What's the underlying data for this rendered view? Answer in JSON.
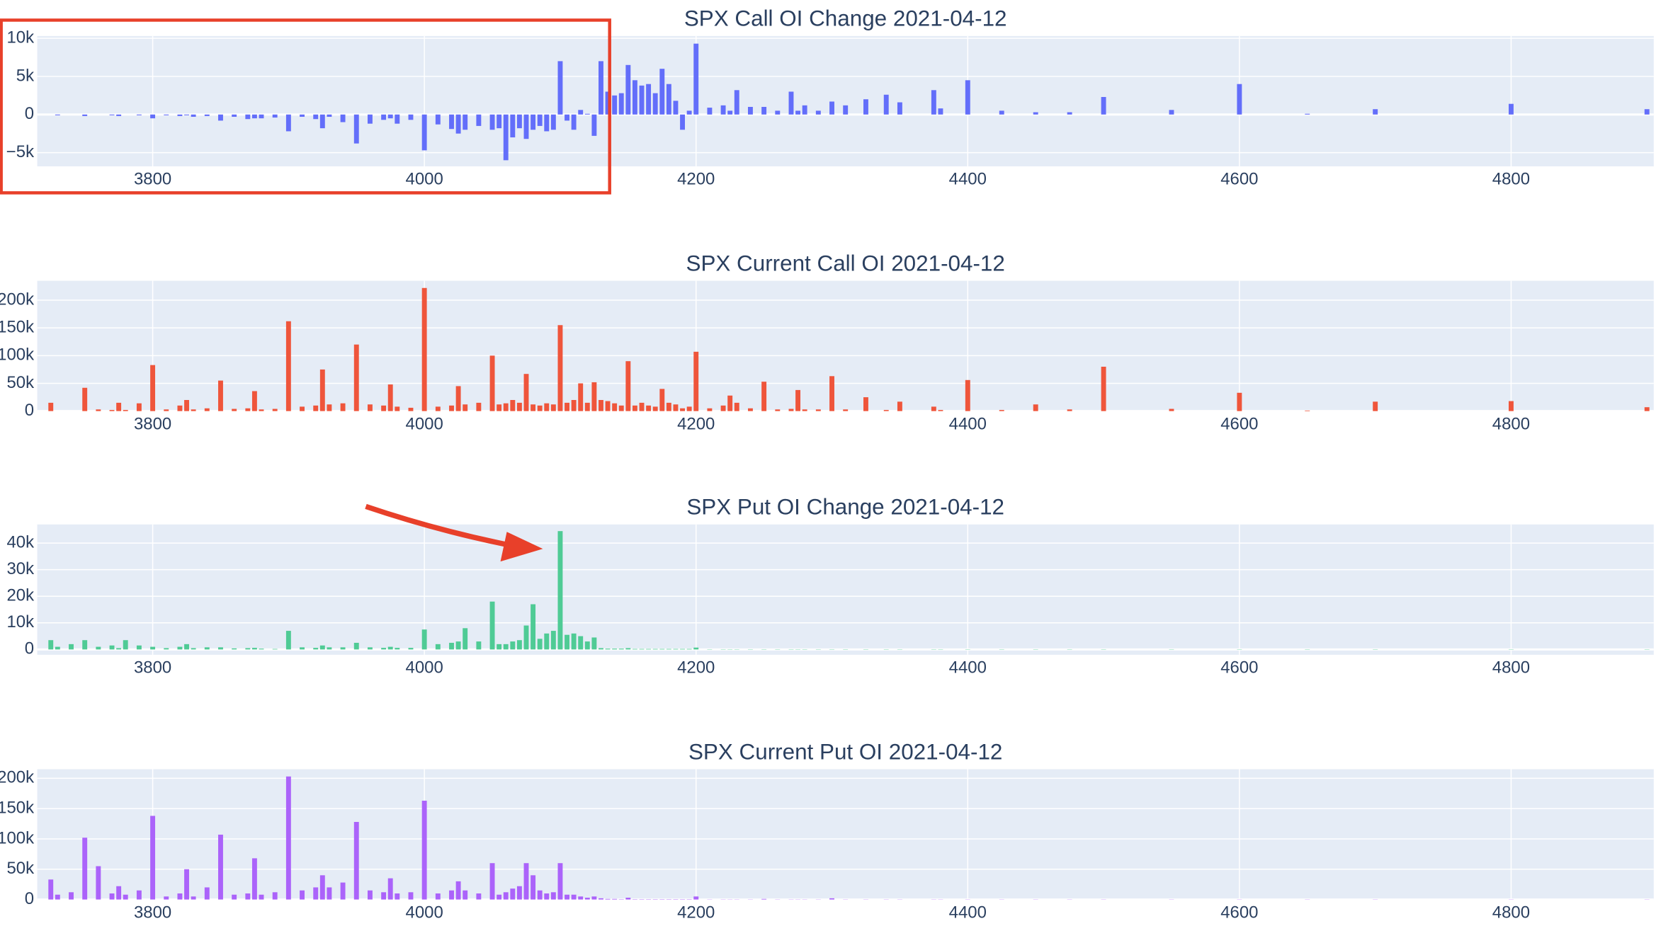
{
  "chart_data": [
    {
      "type": "bar",
      "title": "SPX Call OI Change 2021-04-12",
      "color": "#636efa",
      "x": [
        3725,
        3730,
        3740,
        3750,
        3760,
        3770,
        3775,
        3780,
        3790,
        3800,
        3810,
        3820,
        3825,
        3830,
        3840,
        3850,
        3860,
        3870,
        3875,
        3880,
        3890,
        3900,
        3910,
        3920,
        3925,
        3930,
        3940,
        3950,
        3960,
        3970,
        3975,
        3980,
        3990,
        4000,
        4010,
        4020,
        4025,
        4030,
        4040,
        4050,
        4055,
        4060,
        4065,
        4070,
        4075,
        4080,
        4085,
        4090,
        4095,
        4100,
        4105,
        4110,
        4115,
        4120,
        4125,
        4130,
        4135,
        4140,
        4145,
        4150,
        4155,
        4160,
        4165,
        4170,
        4175,
        4180,
        4185,
        4190,
        4195,
        4200,
        4210,
        4220,
        4225,
        4230,
        4240,
        4250,
        4260,
        4270,
        4275,
        4280,
        4290,
        4300,
        4310,
        4325,
        4340,
        4350,
        4375,
        4380,
        4400,
        4425,
        4450,
        4475,
        4500,
        4550,
        4600,
        4650,
        4700,
        4800,
        4900
      ],
      "values": [
        0,
        -100,
        0,
        -200,
        0,
        -100,
        -200,
        0,
        -100,
        -500,
        -100,
        -200,
        -100,
        -300,
        -200,
        -800,
        -300,
        -600,
        -500,
        -500,
        -400,
        -2200,
        -300,
        -600,
        -1800,
        -300,
        -1000,
        -3800,
        -1200,
        -700,
        -500,
        -1200,
        -700,
        -4700,
        -1300,
        -1900,
        -2500,
        -2000,
        -1500,
        -2000,
        -1800,
        -6000,
        -3000,
        -1800,
        -3200,
        -2000,
        -1500,
        -2200,
        -2000,
        7000,
        -800,
        -2000,
        600,
        100,
        -2800,
        7000,
        3000,
        2500,
        2800,
        6500,
        4500,
        3800,
        4000,
        2800,
        6000,
        4000,
        1800,
        -2000,
        500,
        9300,
        900,
        1200,
        500,
        3200,
        1000,
        1000,
        500,
        3000,
        500,
        1200,
        500,
        1700,
        1200,
        2000,
        2600,
        1600,
        3200,
        800,
        4500,
        500,
        300,
        300,
        2300,
        600,
        4000,
        100,
        700,
        1400,
        700
      ],
      "xlim": [
        3715,
        4905
      ],
      "xticks": [
        3800,
        4000,
        4200,
        4400,
        4600,
        4800
      ],
      "ylim": [
        -6800,
        10300
      ],
      "yticks": [
        {
          "value": -5000,
          "label": "−5k"
        },
        0,
        {
          "value": 5000,
          "label": "5k"
        },
        {
          "value": 10000,
          "label": "10k"
        }
      ],
      "grid": true
    },
    {
      "type": "bar",
      "title": "SPX Current Call OI 2021-04-12",
      "color": "#ef553b",
      "x": [
        3725,
        3730,
        3740,
        3750,
        3760,
        3770,
        3775,
        3780,
        3790,
        3800,
        3810,
        3820,
        3825,
        3830,
        3840,
        3850,
        3860,
        3870,
        3875,
        3880,
        3890,
        3900,
        3910,
        3920,
        3925,
        3930,
        3940,
        3950,
        3960,
        3970,
        3975,
        3980,
        3990,
        4000,
        4010,
        4020,
        4025,
        4030,
        4040,
        4050,
        4055,
        4060,
        4065,
        4070,
        4075,
        4080,
        4085,
        4090,
        4095,
        4100,
        4105,
        4110,
        4115,
        4120,
        4125,
        4130,
        4135,
        4140,
        4145,
        4150,
        4155,
        4160,
        4165,
        4170,
        4175,
        4180,
        4185,
        4190,
        4195,
        4200,
        4210,
        4220,
        4225,
        4230,
        4240,
        4250,
        4260,
        4270,
        4275,
        4280,
        4290,
        4300,
        4310,
        4325,
        4340,
        4350,
        4375,
        4380,
        4400,
        4425,
        4450,
        4475,
        4500,
        4550,
        4600,
        4650,
        4700,
        4800,
        4900
      ],
      "values": [
        15000,
        0,
        0,
        42000,
        3000,
        2000,
        15000,
        2000,
        14000,
        83000,
        3000,
        10000,
        20000,
        3000,
        5000,
        55000,
        4000,
        5000,
        36000,
        3000,
        4000,
        162000,
        8000,
        10000,
        75000,
        12000,
        14000,
        120000,
        12000,
        10000,
        48000,
        8000,
        6000,
        222000,
        8000,
        10000,
        45000,
        12000,
        15000,
        100000,
        12000,
        14000,
        20000,
        15000,
        67000,
        12000,
        10000,
        14000,
        12000,
        155000,
        15000,
        20000,
        50000,
        15000,
        52000,
        20000,
        18000,
        14000,
        10000,
        90000,
        10000,
        15000,
        10000,
        8000,
        40000,
        15000,
        12000,
        5000,
        8000,
        107000,
        5000,
        10000,
        28000,
        15000,
        5000,
        53000,
        3000,
        4000,
        38000,
        3000,
        3000,
        63000,
        3000,
        25000,
        2000,
        17000,
        8000,
        2000,
        56000,
        2000,
        12000,
        3000,
        80000,
        4000,
        33000,
        1000,
        17000,
        18000,
        7000
      ],
      "xlim": [
        3715,
        4905
      ],
      "xticks": [
        3800,
        4000,
        4200,
        4400,
        4600,
        4800
      ],
      "ylim": [
        0,
        235000
      ],
      "yticks": [
        0,
        {
          "value": 50000,
          "label": "50k"
        },
        {
          "value": 100000,
          "label": "100k"
        },
        {
          "value": 150000,
          "label": "150k"
        },
        {
          "value": 200000,
          "label": "200k"
        }
      ],
      "grid": true
    },
    {
      "type": "bar",
      "title": "SPX Put OI Change 2021-04-12",
      "color": "#4fcb95",
      "x": [
        3725,
        3730,
        3740,
        3750,
        3760,
        3770,
        3775,
        3780,
        3790,
        3800,
        3810,
        3820,
        3825,
        3830,
        3840,
        3850,
        3860,
        3870,
        3875,
        3880,
        3890,
        3900,
        3910,
        3920,
        3925,
        3930,
        3940,
        3950,
        3960,
        3970,
        3975,
        3980,
        3990,
        4000,
        4010,
        4020,
        4025,
        4030,
        4040,
        4050,
        4055,
        4060,
        4065,
        4070,
        4075,
        4080,
        4085,
        4090,
        4095,
        4100,
        4105,
        4110,
        4115,
        4120,
        4125,
        4130,
        4135,
        4140,
        4145,
        4150,
        4155,
        4160,
        4165,
        4170,
        4175,
        4180,
        4185,
        4190,
        4195,
        4200,
        4210,
        4220,
        4225,
        4230,
        4240,
        4250,
        4260,
        4270,
        4275,
        4280,
        4290,
        4300,
        4310,
        4325,
        4340,
        4350,
        4375,
        4380,
        4400,
        4425,
        4450,
        4475,
        4500,
        4550,
        4600,
        4650,
        4700,
        4800,
        4900
      ],
      "values": [
        3500,
        1000,
        2000,
        3500,
        1000,
        1500,
        500,
        3500,
        1500,
        1000,
        500,
        1000,
        2000,
        500,
        800,
        800,
        400,
        500,
        600,
        300,
        200,
        7000,
        800,
        600,
        1500,
        800,
        800,
        2500,
        800,
        600,
        1000,
        600,
        600,
        7500,
        2000,
        2500,
        3000,
        8000,
        3000,
        18000,
        2000,
        2000,
        3000,
        3500,
        9000,
        17000,
        4000,
        6000,
        7000,
        44500,
        5500,
        6000,
        5000,
        3000,
        4500,
        500,
        300,
        300,
        300,
        500,
        200,
        200,
        200,
        200,
        200,
        200,
        200,
        200,
        200,
        700,
        100,
        100,
        100,
        100,
        100,
        100,
        100,
        100,
        100,
        100,
        100,
        100,
        100,
        100,
        100,
        100,
        100,
        100,
        100,
        100,
        100,
        100,
        100,
        100,
        100,
        100,
        100,
        100,
        100
      ],
      "xlim": [
        3715,
        4905
      ],
      "xticks": [
        3800,
        4000,
        4200,
        4400,
        4600,
        4800
      ],
      "ylim": [
        -2000,
        47000
      ],
      "yticks": [
        0,
        {
          "value": 10000,
          "label": "10k"
        },
        {
          "value": 20000,
          "label": "20k"
        },
        {
          "value": 30000,
          "label": "30k"
        },
        {
          "value": 40000,
          "label": "40k"
        }
      ],
      "grid": true
    },
    {
      "type": "bar",
      "title": "SPX Current Put OI 2021-04-12",
      "color": "#ab63fa",
      "x": [
        3725,
        3730,
        3740,
        3750,
        3760,
        3770,
        3775,
        3780,
        3790,
        3800,
        3810,
        3820,
        3825,
        3830,
        3840,
        3850,
        3860,
        3870,
        3875,
        3880,
        3890,
        3900,
        3910,
        3920,
        3925,
        3930,
        3940,
        3950,
        3960,
        3970,
        3975,
        3980,
        3990,
        4000,
        4010,
        4020,
        4025,
        4030,
        4040,
        4050,
        4055,
        4060,
        4065,
        4070,
        4075,
        4080,
        4085,
        4090,
        4095,
        4100,
        4105,
        4110,
        4115,
        4120,
        4125,
        4130,
        4135,
        4140,
        4145,
        4150,
        4155,
        4160,
        4165,
        4170,
        4175,
        4180,
        4185,
        4190,
        4195,
        4200,
        4210,
        4220,
        4225,
        4230,
        4240,
        4250,
        4260,
        4270,
        4275,
        4280,
        4290,
        4300,
        4310,
        4325,
        4340,
        4350,
        4375,
        4380,
        4400,
        4425,
        4450,
        4475,
        4500,
        4550,
        4600,
        4650,
        4700,
        4800,
        4900
      ],
      "values": [
        33000,
        8000,
        12000,
        102000,
        55000,
        10000,
        22000,
        8000,
        15000,
        138000,
        5000,
        10000,
        50000,
        5000,
        20000,
        107000,
        8000,
        10000,
        68000,
        8000,
        12000,
        203000,
        15000,
        20000,
        40000,
        20000,
        28000,
        128000,
        15000,
        12000,
        35000,
        10000,
        12000,
        163000,
        10000,
        15000,
        30000,
        15000,
        10000,
        60000,
        8000,
        12000,
        18000,
        22000,
        60000,
        40000,
        15000,
        10000,
        12000,
        60000,
        8000,
        8000,
        5000,
        3000,
        5000,
        2000,
        1000,
        1000,
        500,
        3000,
        500,
        500,
        500,
        500,
        500,
        500,
        500,
        500,
        500,
        5000,
        300,
        300,
        300,
        300,
        300,
        1000,
        300,
        300,
        300,
        300,
        300,
        2000,
        300,
        300,
        300,
        300,
        300,
        300,
        300,
        300,
        300,
        300,
        300,
        300,
        300,
        300,
        300,
        300,
        300
      ],
      "xlim": [
        3715,
        4905
      ],
      "xticks": [
        3800,
        4000,
        4200,
        4400,
        4600,
        4800
      ],
      "ylim": [
        0,
        215000
      ],
      "yticks": [
        0,
        {
          "value": 50000,
          "label": "50k"
        },
        {
          "value": 100000,
          "label": "100k"
        },
        {
          "value": 150000,
          "label": "150k"
        },
        {
          "value": 200000,
          "label": "200k"
        }
      ],
      "grid": true
    }
  ]
}
